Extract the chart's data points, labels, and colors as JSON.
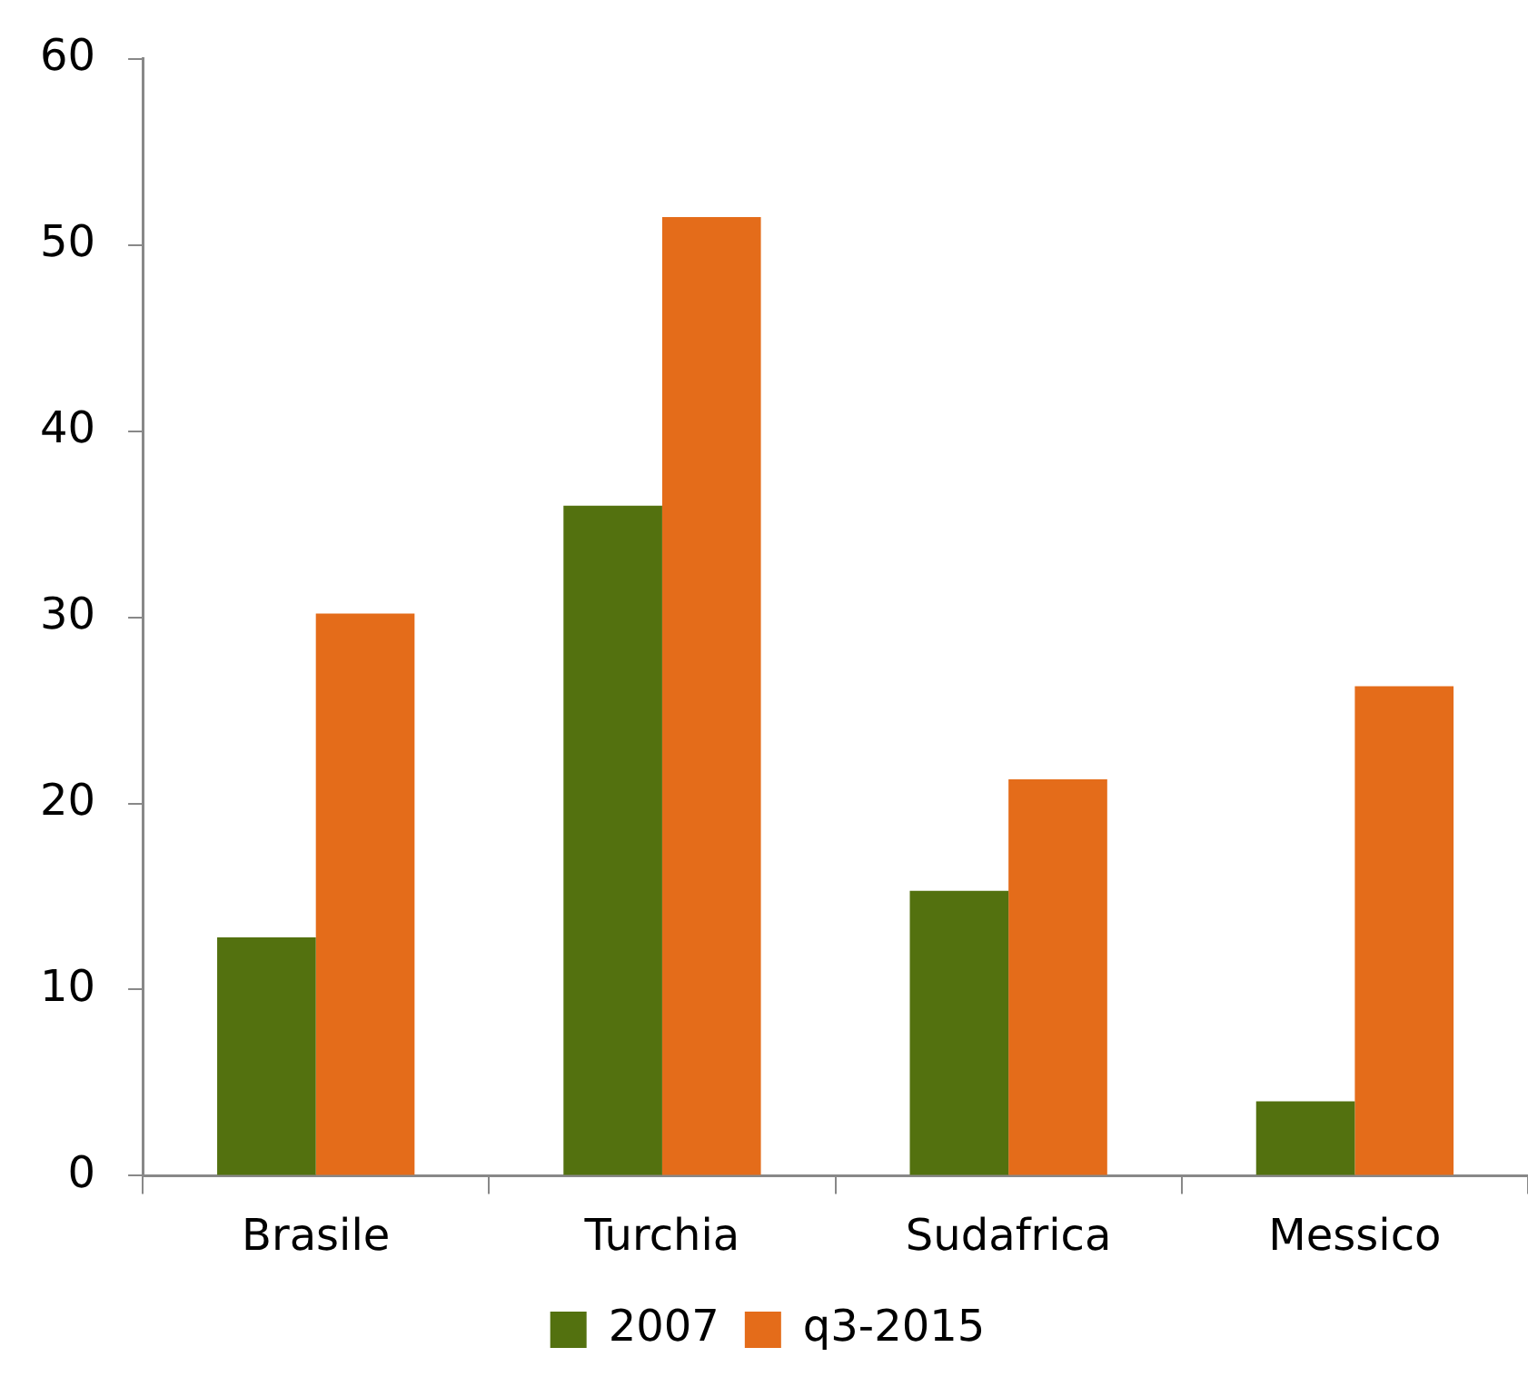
{
  "chart_data": {
    "type": "bar",
    "categories": [
      "Brasile",
      "Turchia",
      "Sudafrica",
      "Messico"
    ],
    "series": [
      {
        "name": "2007",
        "color": "#53710f",
        "values": [
          12.8,
          36.0,
          15.3,
          4.0
        ]
      },
      {
        "name": "q3-2015",
        "color": "#e46c1a",
        "values": [
          30.2,
          51.5,
          21.3,
          26.3
        ]
      }
    ],
    "ylim": [
      0,
      60
    ],
    "yticks": [
      0,
      10,
      20,
      30,
      40,
      50,
      60
    ],
    "grid": false,
    "legend": "bottom"
  }
}
